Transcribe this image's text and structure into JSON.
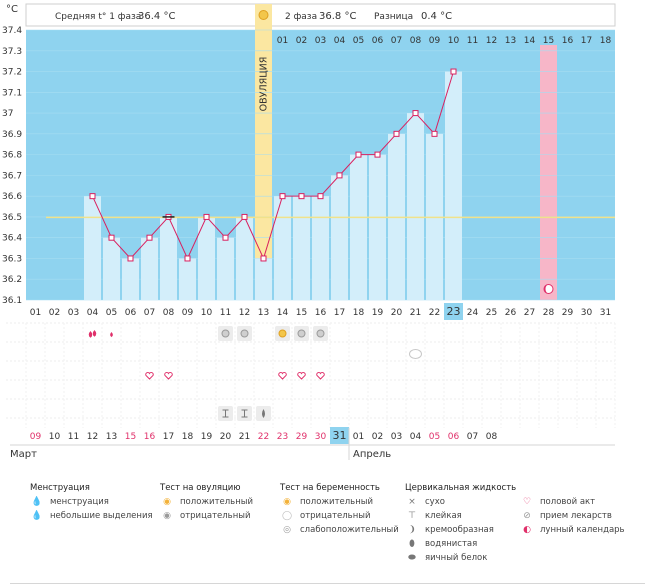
{
  "header": {
    "unit": "°C",
    "phase1_label": "Средняя t° 1 фаза",
    "phase1_value": "36.4 °C",
    "phase2_label": "2 фаза",
    "phase2_value": "36.8 °C",
    "diff_label": "Разница",
    "diff_value": "0.4 °C"
  },
  "ovulation_label": "ОВУЛЯЦИЯ",
  "phase2_day_labels": [
    "01",
    "02",
    "03",
    "04",
    "05",
    "06",
    "07",
    "08",
    "09",
    "10",
    "11",
    "12",
    "13",
    "14",
    "15",
    "16",
    "17",
    "18"
  ],
  "cycle_day_labels": [
    "01",
    "02",
    "03",
    "04",
    "05",
    "06",
    "07",
    "08",
    "09",
    "10",
    "11",
    "12",
    "13",
    "14",
    "15",
    "16",
    "17",
    "18",
    "19",
    "20",
    "21",
    "22",
    "23",
    "24",
    "25",
    "26",
    "27",
    "28",
    "29",
    "30",
    "31"
  ],
  "date_labels": [
    "09",
    "10",
    "11",
    "12",
    "13",
    "15",
    "16",
    "17",
    "18",
    "19",
    "20",
    "21",
    "22",
    "23",
    "29",
    "30",
    "31",
    "01",
    "02",
    "03",
    "04",
    "05",
    "06",
    "07",
    "08"
  ],
  "months": {
    "first": "Март",
    "second": "Апрель"
  },
  "chart_data": {
    "type": "line",
    "y_unit": "°C",
    "ylim": [
      36.1,
      37.4
    ],
    "y_ticks": [
      "36.1",
      "36.2",
      "36.3",
      "36.4",
      "36.5",
      "36.6",
      "36.7",
      "36.8",
      "36.9",
      "37",
      "37.1",
      "37.2",
      "37.3",
      "37.4"
    ],
    "cover_line": 36.5,
    "highlight_day": "23",
    "series": [
      {
        "values": [
          null,
          null,
          null,
          36.6,
          36.4,
          36.3,
          36.4,
          36.5,
          36.3,
          36.5,
          36.4,
          36.5,
          36.3,
          36.6,
          36.6,
          36.6,
          36.7,
          36.8,
          36.8,
          36.9,
          37.0,
          36.9,
          37.2
        ]
      }
    ]
  },
  "legend": {
    "columns": [
      {
        "title": "Менструация",
        "items": [
          {
            "icon": "drops-icon",
            "glyph": "💧",
            "color": "#e0306a",
            "label": "менструация"
          },
          {
            "icon": "drop-small-icon",
            "glyph": "💧",
            "color": "#e0306a",
            "label": "небольшие выделения"
          }
        ]
      },
      {
        "title": "Тест на овуляцию",
        "items": [
          {
            "icon": "positive-sun-icon",
            "glyph": "◉",
            "color": "#f3b23a",
            "label": "положительный"
          },
          {
            "icon": "negative-circle-icon",
            "glyph": "◉",
            "color": "#9a9a9a",
            "label": "отрицательный"
          }
        ]
      },
      {
        "title": "Тест на беременность",
        "items": [
          {
            "icon": "positive-icon",
            "glyph": "◉",
            "color": "#f3b23a",
            "label": "положительный"
          },
          {
            "icon": "negative-icon",
            "glyph": "◯",
            "color": "#bbbbbb",
            "label": "отрицательный"
          },
          {
            "icon": "weak-positive-icon",
            "glyph": "◎",
            "color": "#999999",
            "label": "слабоположительный"
          }
        ]
      },
      {
        "title": "Цервикальная жидкость",
        "items": [
          {
            "icon": "dry-icon",
            "glyph": "×",
            "color": "#777777",
            "label": "сухо"
          },
          {
            "icon": "sticky-icon",
            "glyph": "⊤",
            "color": "#777777",
            "label": "клейкая"
          },
          {
            "icon": "creamy-icon",
            "glyph": "❩",
            "color": "#777777",
            "label": "кремообразная"
          },
          {
            "icon": "watery-icon",
            "glyph": "⬮",
            "color": "#777777",
            "label": "водянистая"
          },
          {
            "icon": "egg-white-icon",
            "glyph": "⬬",
            "color": "#777777",
            "label": "яичный белок"
          }
        ]
      },
      {
        "title": "",
        "items": [
          {
            "icon": "heart-icon",
            "glyph": "♡",
            "color": "#e0306a",
            "label": "половой акт"
          },
          {
            "icon": "pill-icon",
            "glyph": "⊘",
            "color": "#999999",
            "label": "прием лекарств"
          },
          {
            "icon": "moon-icon",
            "glyph": "◐",
            "color": "#e0306a",
            "label": "лунный календарь"
          }
        ]
      }
    ]
  }
}
